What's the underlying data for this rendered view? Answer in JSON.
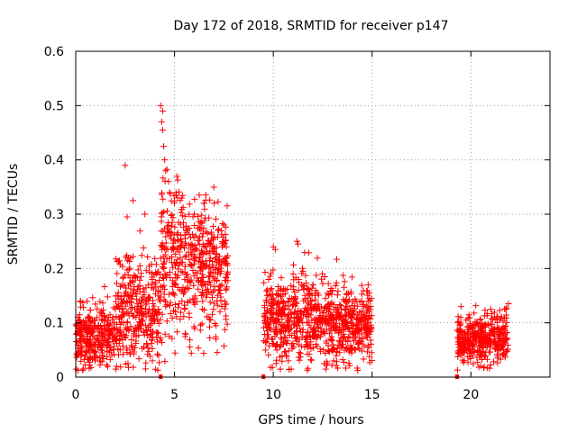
{
  "chart_data": {
    "type": "scatter",
    "title": "Day 172 of 2018, SRMTID for receiver p147",
    "xlabel": "GPS time / hours",
    "ylabel": "SRMTID / TECUs",
    "xlim": [
      0,
      24
    ],
    "ylim": [
      0,
      0.6
    ],
    "xticks": [
      0,
      5,
      10,
      15,
      20
    ],
    "xtick_labels": [
      "0",
      "5",
      "10",
      "15",
      "20"
    ],
    "yticks": [
      0,
      0.1,
      0.2,
      0.3,
      0.4,
      0.5,
      0.6
    ],
    "ytick_labels": [
      "0",
      "0.1",
      "0.2",
      "0.3",
      "0.4",
      "0.5",
      "0.6"
    ],
    "grid": true,
    "marker": "+",
    "color": "#ff0000",
    "series": [
      {
        "name": "SRMTID",
        "segments": [
          {
            "x_start": 0.0,
            "x_end": 2.0,
            "mean": 0.075,
            "spread": 0.03
          },
          {
            "x_start": 2.0,
            "x_end": 4.3,
            "mean": 0.12,
            "spread": 0.05
          },
          {
            "x_start": 4.3,
            "x_end": 5.5,
            "mean": 0.23,
            "spread": 0.07
          },
          {
            "x_start": 5.5,
            "x_end": 7.7,
            "mean": 0.2,
            "spread": 0.06
          },
          {
            "x_start": 9.5,
            "x_end": 12.0,
            "mean": 0.11,
            "spread": 0.045
          },
          {
            "x_start": 12.0,
            "x_end": 15.0,
            "mean": 0.1,
            "spread": 0.035
          },
          {
            "x_start": 19.3,
            "x_end": 21.9,
            "mean": 0.07,
            "spread": 0.022
          }
        ],
        "points": [
          {
            "x": 2.5,
            "y": 0.39
          },
          {
            "x": 2.6,
            "y": 0.295
          },
          {
            "x": 2.9,
            "y": 0.325
          },
          {
            "x": 3.5,
            "y": 0.3
          },
          {
            "x": 4.3,
            "y": 0.5
          },
          {
            "x": 4.4,
            "y": 0.49
          },
          {
            "x": 4.35,
            "y": 0.47
          },
          {
            "x": 4.4,
            "y": 0.455
          },
          {
            "x": 4.45,
            "y": 0.425
          },
          {
            "x": 4.5,
            "y": 0.4
          },
          {
            "x": 4.55,
            "y": 0.38
          },
          {
            "x": 4.7,
            "y": 0.36
          },
          {
            "x": 4.75,
            "y": 0.34
          },
          {
            "x": 6.0,
            "y": 0.3
          },
          {
            "x": 6.5,
            "y": 0.32
          },
          {
            "x": 7.0,
            "y": 0.32
          },
          {
            "x": 7.2,
            "y": 0.27
          },
          {
            "x": 7.1,
            "y": 0.07
          },
          {
            "x": 10.0,
            "y": 0.24
          },
          {
            "x": 10.1,
            "y": 0.235
          },
          {
            "x": 11.0,
            "y": 0.19
          },
          {
            "x": 11.2,
            "y": 0.25
          },
          {
            "x": 11.25,
            "y": 0.245
          },
          {
            "x": 11.5,
            "y": 0.195
          },
          {
            "x": 12.0,
            "y": 0.17
          },
          {
            "x": 13.0,
            "y": 0.16
          },
          {
            "x": 14.8,
            "y": 0.17
          },
          {
            "x": 14.85,
            "y": 0.155
          },
          {
            "x": 19.5,
            "y": 0.13
          },
          {
            "x": 21.9,
            "y": 0.135
          },
          {
            "x": 21.0,
            "y": 0.125
          },
          {
            "x": 20.5,
            "y": 0.02
          }
        ]
      }
    ],
    "gap_markers": [
      4.3,
      9.5,
      19.3
    ]
  }
}
